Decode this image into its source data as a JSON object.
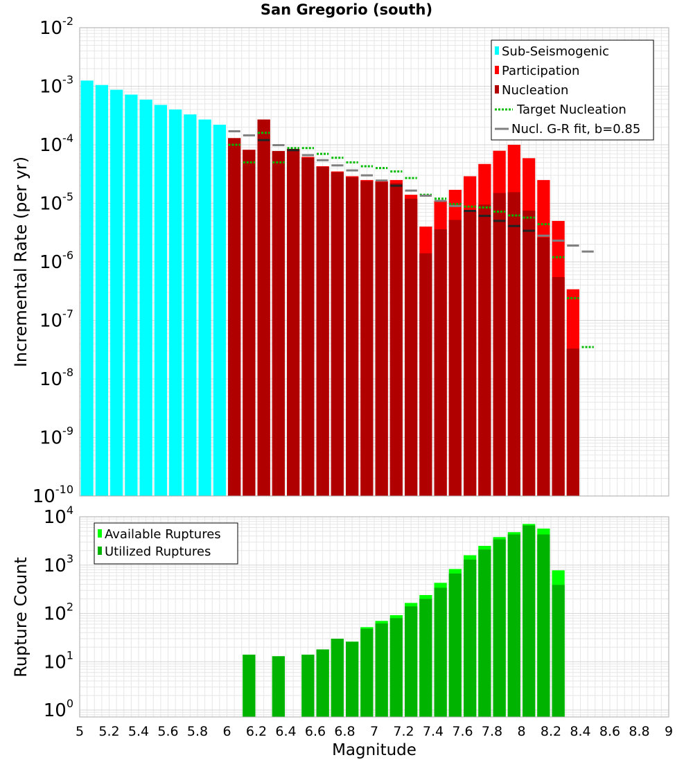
{
  "title": "San Gregorio (south)",
  "colors": {
    "sub_seismogenic": "#00ffff",
    "participation": "#ff0000",
    "nucleation": "#b10000",
    "target_nucleation": "#00bb00",
    "gr_fit": "#808080",
    "gr_fit_nucleation_overlap": "#222222",
    "available_ruptures": "#00ff00",
    "utilized_ruptures": "#00b300",
    "grid": "#e6e6e6",
    "frame": "#aaaaaa"
  },
  "chart_data": [
    {
      "type": "bar",
      "ylabel": "Incremental Rate (per yr)",
      "xlabel": "",
      "yscale": "log",
      "xlim": [
        5,
        9
      ],
      "ylim": [
        1e-10,
        0.01
      ],
      "y_ticks": [
        {
          "base": "10",
          "exp": "-10",
          "value": 1e-10
        },
        {
          "base": "10",
          "exp": "-9",
          "value": 1e-09
        },
        {
          "base": "10",
          "exp": "-8",
          "value": 1e-08
        },
        {
          "base": "10",
          "exp": "-7",
          "value": 1e-07
        },
        {
          "base": "10",
          "exp": "-6",
          "value": 1e-06
        },
        {
          "base": "10",
          "exp": "-5",
          "value": 1e-05
        },
        {
          "base": "10",
          "exp": "-4",
          "value": 0.0001
        },
        {
          "base": "10",
          "exp": "-3",
          "value": 0.001
        },
        {
          "base": "10",
          "exp": "-2",
          "value": 0.01
        }
      ],
      "grid": true,
      "legend_position": "top-right",
      "legend": [
        {
          "label": "Sub-Seismogenic",
          "symbol": "box",
          "color": "#00ffff"
        },
        {
          "label": "Participation",
          "symbol": "box",
          "color": "#ff0000"
        },
        {
          "label": "Nucleation",
          "symbol": "box",
          "color": "#b10000"
        },
        {
          "label": "Target Nucleation",
          "symbol": "dots",
          "color": "#00bb00"
        },
        {
          "label": "Nucl. G-R fit, b=0.85",
          "symbol": "line",
          "color": "#808080"
        }
      ],
      "bin_width": 0.1,
      "series": [
        {
          "name": "Sub-Seismogenic",
          "kind": "bar",
          "x": [
            5.05,
            5.15,
            5.25,
            5.35,
            5.45,
            5.55,
            5.65,
            5.75,
            5.85,
            5.95
          ],
          "values": [
            0.00125,
            0.00105,
            0.00087,
            0.00072,
            0.00059,
            0.00048,
            0.0004,
            0.00033,
            0.00027,
            0.00022
          ]
        },
        {
          "name": "Participation",
          "kind": "bar",
          "x": [
            6.05,
            6.15,
            6.25,
            6.35,
            6.45,
            6.55,
            6.65,
            6.75,
            6.85,
            6.95,
            7.05,
            7.15,
            7.25,
            7.35,
            7.45,
            7.55,
            7.65,
            7.75,
            7.85,
            7.95,
            8.05,
            8.15,
            8.25,
            8.35
          ],
          "values": [
            0.00013,
            8.2e-05,
            0.00027,
            7.8e-05,
            8.5e-05,
            6.2e-05,
            4.3e-05,
            3.5e-05,
            2.9e-05,
            2.5e-05,
            2.4e-05,
            2.5e-05,
            1.4e-05,
            4e-06,
            1.1e-05,
            1.7e-05,
            2.9e-05,
            4.7e-05,
            7.9e-05,
            0.0001,
            5.9e-05,
            2.5e-05,
            5e-06,
            3.4e-07
          ]
        },
        {
          "name": "Nucleation",
          "kind": "bar",
          "x": [
            6.05,
            6.15,
            6.25,
            6.35,
            6.45,
            6.55,
            6.65,
            6.75,
            6.85,
            6.95,
            7.05,
            7.15,
            7.25,
            7.35,
            7.45,
            7.55,
            7.65,
            7.75,
            7.85,
            7.95,
            8.05,
            8.15,
            8.25,
            8.35
          ],
          "values": [
            0.00013,
            8.2e-05,
            0.00027,
            7.8e-05,
            8.3e-05,
            6e-05,
            4.2e-05,
            3.4e-05,
            2.8e-05,
            2.4e-05,
            2.3e-05,
            2.2e-05,
            1.2e-05,
            1.4e-06,
            3.6e-06,
            5.2e-06,
            7.5e-06,
            9.5e-06,
            1.5e-05,
            1.55e-05,
            7.5e-06,
            2.6e-06,
            5.5e-07,
            3.3e-08
          ]
        },
        {
          "name": "Target Nucleation",
          "kind": "dotted-step",
          "x": [
            6.05,
            6.15,
            6.25,
            6.35,
            6.45,
            6.55,
            6.65,
            6.75,
            6.85,
            6.95,
            7.05,
            7.15,
            7.25,
            7.35,
            7.45,
            7.55,
            7.65,
            7.75,
            7.85,
            7.95,
            8.05,
            8.15,
            8.25,
            8.35,
            8.45
          ],
          "values": [
            0.0001,
            5e-05,
            0.00016,
            5e-05,
            8.8e-05,
            8.8e-05,
            7e-05,
            6e-05,
            5e-05,
            4.3e-05,
            4e-05,
            3.5e-05,
            2.7e-05,
            1.4e-05,
            1.2e-05,
            9.7e-06,
            8.8e-06,
            8.5e-06,
            7.2e-06,
            6.2e-06,
            5.7e-06,
            4.4e-06,
            1.2e-06,
            2.4e-07,
            3.5e-08
          ]
        },
        {
          "name": "Nucl. G-R fit, b=0.85",
          "kind": "step",
          "x": [
            6.05,
            6.15,
            6.25,
            6.35,
            6.45,
            6.55,
            6.65,
            6.75,
            6.85,
            6.95,
            7.05,
            7.15,
            7.25,
            7.35,
            7.45,
            7.55,
            7.65,
            7.75,
            7.85,
            7.95,
            8.05,
            8.15,
            8.25,
            8.35,
            8.45
          ],
          "values": [
            0.00017,
            0.000145,
            0.00012,
            9.85e-05,
            8.1e-05,
            6.65e-05,
            5.45e-05,
            4.45e-05,
            3.65e-05,
            3e-05,
            2.45e-05,
            2e-05,
            1.65e-05,
            1.35e-05,
            1.1e-05,
            9e-06,
            7.4e-06,
            6.1e-06,
            5e-06,
            4.1e-06,
            3.4e-06,
            2.8e-06,
            2.3e-06,
            1.9e-06,
            1.5e-06
          ]
        }
      ]
    },
    {
      "type": "bar",
      "ylabel": "Rupture Count",
      "xlabel": "Magnitude",
      "yscale": "log",
      "xlim": [
        5,
        9
      ],
      "ylim": [
        0.72,
        10000
      ],
      "x_ticks": [
        "5",
        "5.2",
        "5.4",
        "5.6",
        "5.8",
        "6",
        "6.2",
        "6.4",
        "6.6",
        "6.8",
        "7",
        "7.2",
        "7.4",
        "7.6",
        "7.8",
        "8",
        "8.2",
        "8.4",
        "8.6",
        "8.8",
        "9"
      ],
      "y_ticks": [
        {
          "base": "10",
          "exp": "0",
          "value": 1
        },
        {
          "base": "10",
          "exp": "1",
          "value": 10
        },
        {
          "base": "10",
          "exp": "2",
          "value": 100
        },
        {
          "base": "10",
          "exp": "3",
          "value": 1000
        },
        {
          "base": "10",
          "exp": "4",
          "value": 10000
        }
      ],
      "grid": true,
      "legend_position": "top-left",
      "legend": [
        {
          "label": "Available Ruptures",
          "symbol": "box",
          "color": "#00ff00"
        },
        {
          "label": "Utilized Ruptures",
          "symbol": "box",
          "color": "#00b300"
        }
      ],
      "bin_width": 0.1,
      "series": [
        {
          "name": "Available Ruptures",
          "kind": "bar",
          "x": [
            6.15,
            6.35,
            6.55,
            6.65,
            6.75,
            6.85,
            6.95,
            7.05,
            7.15,
            7.25,
            7.35,
            7.45,
            7.55,
            7.65,
            7.75,
            7.85,
            7.95,
            8.05,
            8.15,
            8.25
          ],
          "values": [
            14,
            13,
            14,
            18,
            30,
            26,
            52,
            70,
            92,
            165,
            240,
            430,
            830,
            1600,
            2500,
            3800,
            4800,
            7100,
            5700,
            780
          ]
        },
        {
          "name": "Utilized Ruptures",
          "kind": "bar",
          "x": [
            6.15,
            6.35,
            6.55,
            6.65,
            6.75,
            6.85,
            6.95,
            7.05,
            7.15,
            7.25,
            7.35,
            7.45,
            7.55,
            7.65,
            7.75,
            7.85,
            7.95,
            8.05,
            8.15,
            8.25
          ],
          "values": [
            14,
            13,
            14,
            18,
            30,
            26,
            48,
            62,
            80,
            140,
            200,
            340,
            670,
            1300,
            2100,
            3400,
            4300,
            6600,
            4300,
            390
          ]
        }
      ]
    }
  ]
}
